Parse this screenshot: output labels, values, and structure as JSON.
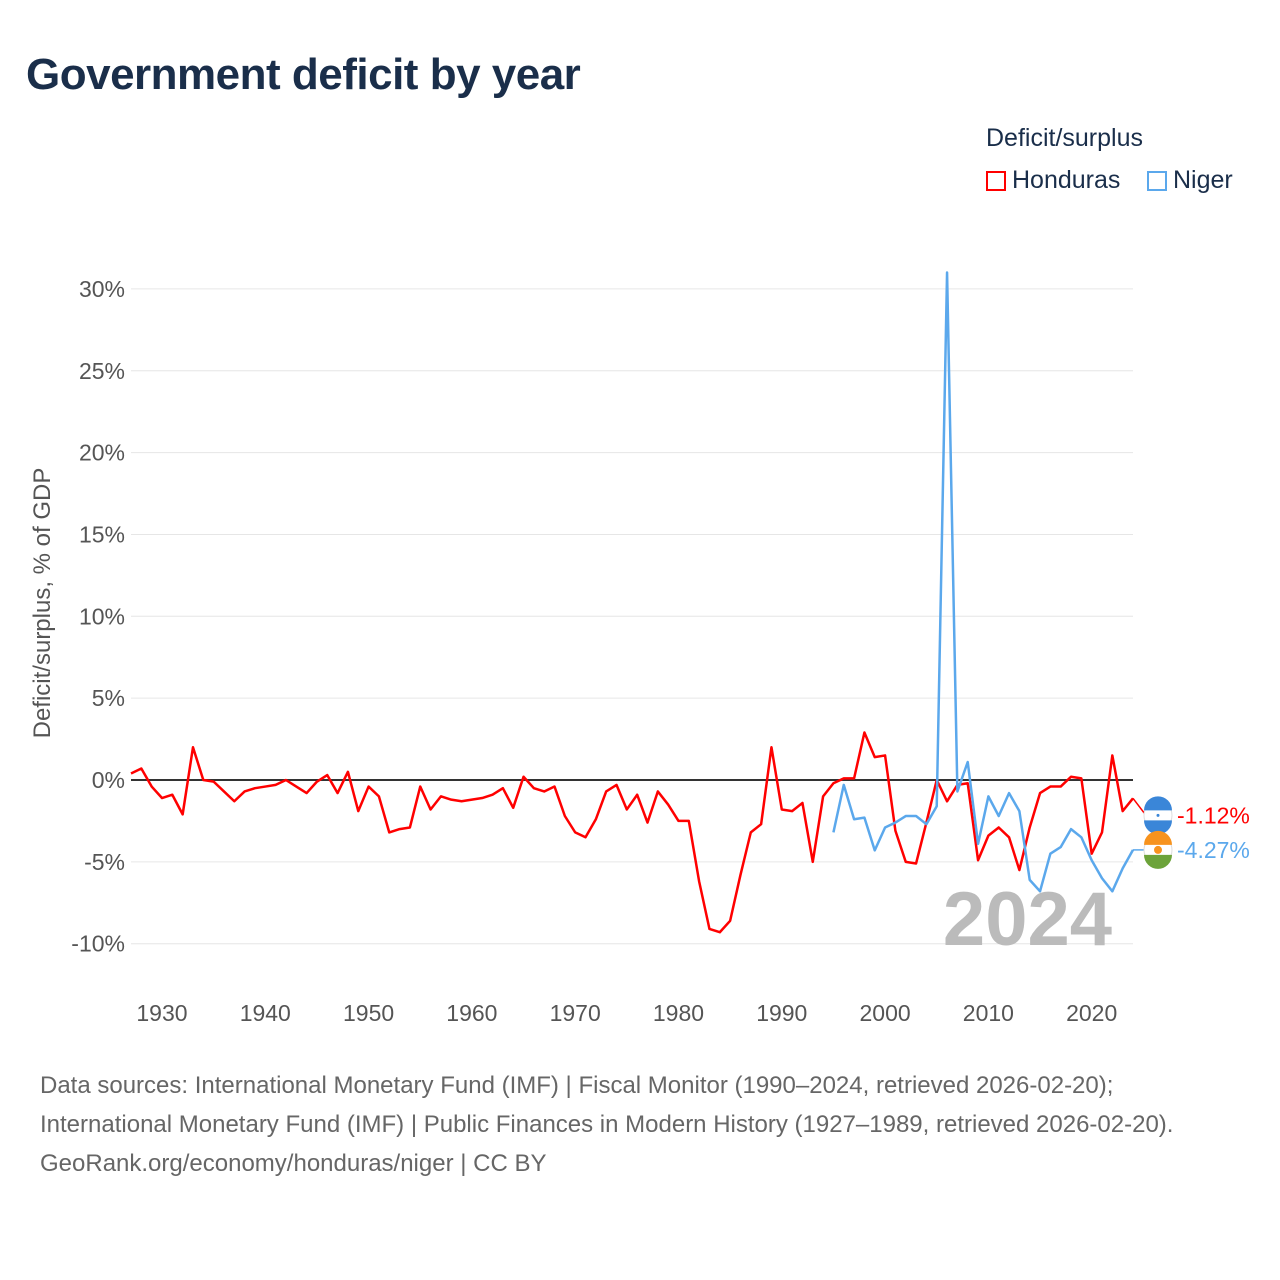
{
  "title": "Government deficit by year",
  "legend": {
    "title": "Deficit/surplus",
    "items": [
      {
        "name": "Honduras",
        "color": "#ff0000"
      },
      {
        "name": "Niger",
        "color": "#5ba8ec"
      }
    ]
  },
  "current_year": "2024",
  "sources": {
    "line1": "Data sources: International Monetary Fund (IMF) | Fiscal Monitor (1990–2024, retrieved 2026-02-20); International Monetary Fund (IMF) | Public Finances in Modern History (1927–1989, retrieved 2026-02-20).",
    "line2": "GeoRank.org/economy/honduras/niger | CC BY"
  },
  "chart_data": {
    "type": "line",
    "title": "Government deficit by year",
    "xlabel": "",
    "ylabel": "Deficit/surplus, % of GDP",
    "xlim": [
      1927,
      2024
    ],
    "ylim": [
      -12.5,
      31.5
    ],
    "xticks": [
      1930,
      1940,
      1950,
      1960,
      1970,
      1980,
      1990,
      2000,
      2010,
      2020
    ],
    "yticks": [
      -10,
      -5,
      0,
      5,
      10,
      15,
      20,
      25,
      30
    ],
    "ytick_labels": [
      "-10%",
      "-5%",
      "0%",
      "5%",
      "10%",
      "15%",
      "20%",
      "25%",
      "30%"
    ],
    "grid": true,
    "legend_position": "top-right",
    "series": [
      {
        "name": "Honduras",
        "color": "#ff0000",
        "end_label": "-1.12%",
        "start": 1927,
        "values": [
          0.4,
          0.7,
          -0.4,
          -1.1,
          -0.9,
          -2.1,
          2.0,
          0,
          -0.1,
          -0.7,
          -1.3,
          -0.7,
          -0.5,
          -0.4,
          -0.3,
          0,
          -0.4,
          -0.8,
          -0.1,
          0.3,
          -0.8,
          0.5,
          -1.9,
          -0.4,
          -1.0,
          -3.2,
          -3.0,
          -2.9,
          -0.4,
          -1.8,
          -1.0,
          -1.2,
          -1.3,
          -1.2,
          -1.1,
          -0.9,
          -0.5,
          -1.7,
          0.2,
          -0.5,
          -0.7,
          -0.4,
          -2.2,
          -3.2,
          -3.5,
          -2.4,
          -0.7,
          -0.3,
          -1.8,
          -0.9,
          -2.6,
          -0.7,
          -1.5,
          -2.5,
          -2.5,
          -6.2,
          -9.1,
          -9.3,
          -8.6,
          -5.8,
          -3.2,
          -2.7,
          2.0,
          -1.8,
          -1.9,
          -1.4,
          -5.0,
          -1.0,
          -0.2,
          0.1,
          0.1,
          2.9,
          1.4,
          1.5,
          -3.1,
          -5.0,
          -5.1,
          -2.6,
          0,
          -1.3,
          -0.3,
          -0.2,
          -4.9,
          -3.4,
          -2.9,
          -3.5,
          -5.5,
          -2.9,
          -0.8,
          -0.4,
          -0.4,
          0.2,
          0.1,
          -4.5,
          -3.2,
          1.5,
          -1.9,
          -1.12
        ]
      },
      {
        "name": "Niger",
        "color": "#5ba8ec",
        "end_label": "-4.27%",
        "start": 1995,
        "values": [
          -3.2,
          -0.3,
          -2.4,
          -2.3,
          -4.3,
          -2.9,
          -2.6,
          -2.2,
          -2.2,
          -2.7,
          -1.6,
          31.0,
          -0.7,
          1.1,
          -3.9,
          -1.0,
          -2.2,
          -0.8,
          -1.9,
          -6.1,
          -6.8,
          -4.5,
          -4.1,
          -3.0,
          -3.5,
          -4.9,
          -6.0,
          -6.8,
          -5.4,
          -4.27
        ]
      }
    ]
  }
}
